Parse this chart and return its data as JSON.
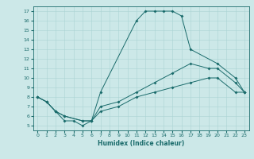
{
  "xlabel": "Humidex (Indice chaleur)",
  "bg_color": "#cce8e8",
  "line_color": "#1a6b6b",
  "grid_color": "#aad4d4",
  "xlim": [
    -0.5,
    23.5
  ],
  "ylim": [
    4.5,
    17.5
  ],
  "xticks": [
    0,
    1,
    2,
    3,
    4,
    5,
    6,
    7,
    8,
    9,
    10,
    11,
    12,
    13,
    14,
    15,
    16,
    17,
    18,
    19,
    20,
    21,
    22,
    23
  ],
  "yticks": [
    5,
    6,
    7,
    8,
    9,
    10,
    11,
    12,
    13,
    14,
    15,
    16,
    17
  ],
  "line1": {
    "x": [
      0,
      1,
      2,
      3,
      4,
      5,
      6,
      7,
      11,
      12,
      13,
      14,
      15,
      16,
      17,
      20,
      22,
      23
    ],
    "y": [
      8,
      7.5,
      6.5,
      5.5,
      5.5,
      5.0,
      5.5,
      8.5,
      16.0,
      17.0,
      17.0,
      17.0,
      17.0,
      16.5,
      13.0,
      11.5,
      10.0,
      8.5
    ]
  },
  "line2": {
    "x": [
      0,
      1,
      2,
      3,
      5,
      6,
      7,
      9,
      11,
      13,
      15,
      17,
      19,
      20,
      22,
      23
    ],
    "y": [
      8,
      7.5,
      6.5,
      6.0,
      5.5,
      5.5,
      7.0,
      7.5,
      8.5,
      9.5,
      10.5,
      11.5,
      11.0,
      11.0,
      9.5,
      8.5
    ]
  },
  "line3": {
    "x": [
      0,
      1,
      2,
      3,
      5,
      6,
      7,
      9,
      11,
      13,
      15,
      17,
      19,
      20,
      22,
      23
    ],
    "y": [
      8,
      7.5,
      6.5,
      6.0,
      5.5,
      5.5,
      6.5,
      7.0,
      8.0,
      8.5,
      9.0,
      9.5,
      10.0,
      10.0,
      8.5,
      8.5
    ]
  }
}
